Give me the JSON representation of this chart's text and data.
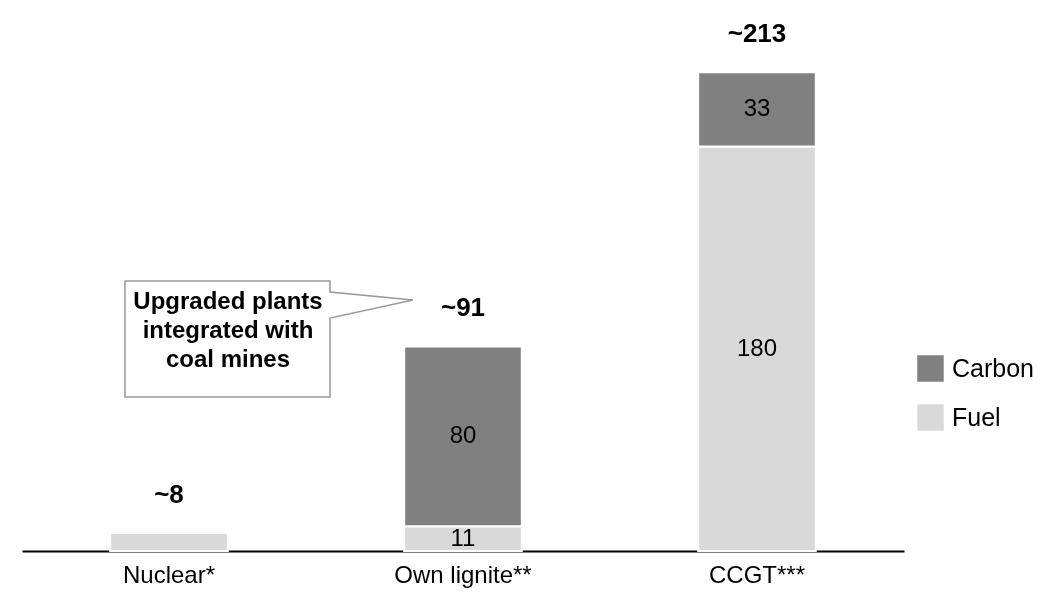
{
  "chart_data": {
    "type": "bar",
    "stacked": true,
    "categories": [
      "Nuclear*",
      "Own lignite**",
      "CCGT***"
    ],
    "series": [
      {
        "name": "Fuel",
        "color": "#d9d9d9",
        "values": [
          8,
          11,
          180
        ],
        "value_labels": [
          null,
          "11",
          "180"
        ]
      },
      {
        "name": "Carbon",
        "color": "#808080",
        "values": [
          null,
          80,
          33
        ],
        "value_labels": [
          null,
          "80",
          "33"
        ]
      }
    ],
    "totals": [
      "~8",
      "~91",
      "~213"
    ],
    "annotations": [
      "Upgraded plants integrated with coal mines"
    ],
    "legend": "right",
    "grid": false
  }
}
